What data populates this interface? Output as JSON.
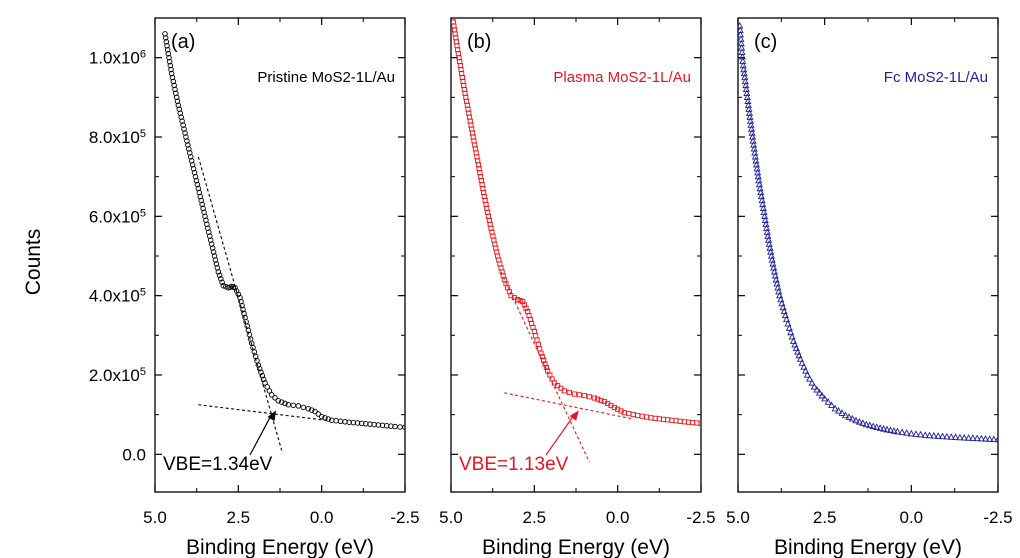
{
  "chart_data": {
    "type": "scatter",
    "ylabel": "Counts",
    "ylim": [
      -95000,
      1100000
    ],
    "xlim": [
      5.0,
      -2.5
    ],
    "y_ticks": [
      {
        "value": 0,
        "mantissa": "0.0",
        "exp": ""
      },
      {
        "value": 200000,
        "mantissa": "2.0x10",
        "exp": "5"
      },
      {
        "value": 400000,
        "mantissa": "4.0x10",
        "exp": "5"
      },
      {
        "value": 600000,
        "mantissa": "6.0x10",
        "exp": "5"
      },
      {
        "value": 800000,
        "mantissa": "8.0x10",
        "exp": "5"
      },
      {
        "value": 1000000,
        "mantissa": "1.0x10",
        "exp": "6"
      }
    ],
    "panels": [
      {
        "panel_label": "(a)",
        "sample_label": "Pristine MoS2-1L/Au",
        "xlabel": "Binding Energy (eV)",
        "x_ticks": [
          "5.0",
          "2.5",
          "0.0",
          "-2.5"
        ],
        "color": "#000000",
        "marker": "circle",
        "annotation": "VBE=1.34eV",
        "vbe": 1.34,
        "points": [
          [
            4.7,
            1060000
          ],
          [
            4.5,
            960000
          ],
          [
            4.3,
            880000
          ],
          [
            4.1,
            810000
          ],
          [
            3.9,
            740000
          ],
          [
            3.7,
            670000
          ],
          [
            3.5,
            600000
          ],
          [
            3.3,
            530000
          ],
          [
            3.1,
            460000
          ],
          [
            2.95,
            425000
          ],
          [
            2.8,
            420000
          ],
          [
            2.7,
            423000
          ],
          [
            2.6,
            420000
          ],
          [
            2.45,
            395000
          ],
          [
            2.3,
            345000
          ],
          [
            2.1,
            280000
          ],
          [
            1.9,
            225000
          ],
          [
            1.7,
            180000
          ],
          [
            1.5,
            150000
          ],
          [
            1.3,
            135000
          ],
          [
            1.0,
            125000
          ],
          [
            0.7,
            122000
          ],
          [
            0.4,
            115000
          ],
          [
            0.2,
            108000
          ],
          [
            0.0,
            95000
          ],
          [
            -0.3,
            86000
          ],
          [
            -0.7,
            82000
          ],
          [
            -1.2,
            78000
          ],
          [
            -1.7,
            74000
          ],
          [
            -2.2,
            70000
          ],
          [
            -2.5,
            68000
          ]
        ],
        "fit_lines": [
          [
            [
              3.7,
              750000
            ],
            [
              1.2,
              10000
            ]
          ],
          [
            [
              3.7,
              125000
            ],
            [
              -0.2,
              85000
            ]
          ]
        ]
      },
      {
        "panel_label": "(b)",
        "sample_label": "Plasma MoS2-1L/Au",
        "xlabel": "Binding Energy (eV)",
        "x_ticks": [
          "5.0",
          "2.5",
          "0.0",
          "-2.5"
        ],
        "color": "#e8161c",
        "marker": "square",
        "annotation": "VBE=1.13eV",
        "vbe": 1.13,
        "points": [
          [
            4.95,
            1100000
          ],
          [
            4.8,
            1020000
          ],
          [
            4.6,
            920000
          ],
          [
            4.4,
            830000
          ],
          [
            4.2,
            740000
          ],
          [
            4.0,
            650000
          ],
          [
            3.8,
            570000
          ],
          [
            3.6,
            500000
          ],
          [
            3.4,
            440000
          ],
          [
            3.2,
            400000
          ],
          [
            3.0,
            390000
          ],
          [
            2.85,
            385000
          ],
          [
            2.7,
            360000
          ],
          [
            2.5,
            310000
          ],
          [
            2.3,
            255000
          ],
          [
            2.1,
            210000
          ],
          [
            1.9,
            180000
          ],
          [
            1.6,
            160000
          ],
          [
            1.3,
            152000
          ],
          [
            1.0,
            148000
          ],
          [
            0.7,
            142000
          ],
          [
            0.4,
            133000
          ],
          [
            0.1,
            118000
          ],
          [
            -0.2,
            105000
          ],
          [
            -0.6,
            98000
          ],
          [
            -1.0,
            92000
          ],
          [
            -1.5,
            87000
          ],
          [
            -2.0,
            82000
          ],
          [
            -2.5,
            78000
          ]
        ],
        "fit_lines": [
          [
            [
              3.5,
              460000
            ],
            [
              0.85,
              -20000
            ]
          ],
          [
            [
              3.4,
              155000
            ],
            [
              -0.4,
              90000
            ]
          ]
        ]
      },
      {
        "panel_label": "(c)",
        "sample_label": "Fc MoS2-1L/Au",
        "xlabel": "Binding Energy (eV)",
        "x_ticks": [
          "5.0",
          "2.5",
          "0.0",
          "-2.5"
        ],
        "color": "#1f1fa0",
        "marker": "triangle",
        "annotation": "",
        "points": [
          [
            4.95,
            1080000
          ],
          [
            4.85,
            980000
          ],
          [
            4.7,
            880000
          ],
          [
            4.55,
            780000
          ],
          [
            4.4,
            690000
          ],
          [
            4.25,
            610000
          ],
          [
            4.1,
            530000
          ],
          [
            3.95,
            460000
          ],
          [
            3.8,
            400000
          ],
          [
            3.6,
            340000
          ],
          [
            3.4,
            285000
          ],
          [
            3.2,
            240000
          ],
          [
            3.0,
            200000
          ],
          [
            2.8,
            170000
          ],
          [
            2.5,
            140000
          ],
          [
            2.2,
            115000
          ],
          [
            1.9,
            98000
          ],
          [
            1.6,
            85000
          ],
          [
            1.3,
            75000
          ],
          [
            1.0,
            68000
          ],
          [
            0.7,
            62000
          ],
          [
            0.4,
            57000
          ],
          [
            0.0,
            52000
          ],
          [
            -0.4,
            48000
          ],
          [
            -0.9,
            45000
          ],
          [
            -1.4,
            42000
          ],
          [
            -1.9,
            40000
          ],
          [
            -2.5,
            37000
          ]
        ],
        "fit_lines": []
      }
    ]
  }
}
